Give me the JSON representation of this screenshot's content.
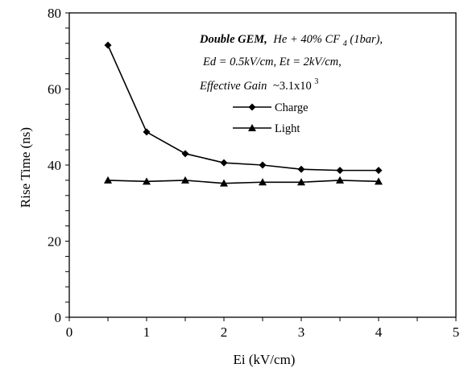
{
  "chart_data": {
    "type": "line",
    "xlabel": "Ei (kV/cm)",
    "ylabel": "Rise Time (ns)",
    "xlim": [
      0,
      5
    ],
    "ylim": [
      0,
      80
    ],
    "xticks": [
      0,
      1,
      2,
      3,
      4,
      5
    ],
    "yticks": [
      0,
      20,
      40,
      60,
      80
    ],
    "x_minor_step": 0.5,
    "y_minor_step": 4,
    "grid": false,
    "legend_position": "upper-middle",
    "x": [
      0.5,
      1.0,
      1.5,
      2.0,
      2.5,
      3.0,
      3.5,
      4.0
    ],
    "series": [
      {
        "name": "Charge",
        "marker": "diamond",
        "color": "#000000",
        "values": [
          71.5,
          48.7,
          43.0,
          40.6,
          40.0,
          38.9,
          38.6,
          38.6
        ]
      },
      {
        "name": "Light",
        "marker": "triangle",
        "color": "#000000",
        "values": [
          36.0,
          35.7,
          36.0,
          35.2,
          35.5,
          35.5,
          36.0,
          35.7
        ]
      }
    ],
    "annotations": {
      "line1_bold": "Double GEM,",
      "line1_rest": "He + 40% CF",
      "line1_sub": "4",
      "line1_tail": " (1bar),",
      "line2": "Ed = 0.5kV/cm, Et = 2kV/cm,",
      "line3": "Effective Gain",
      "line3_value": "~3.1x10",
      "line3_sup": "3"
    }
  }
}
